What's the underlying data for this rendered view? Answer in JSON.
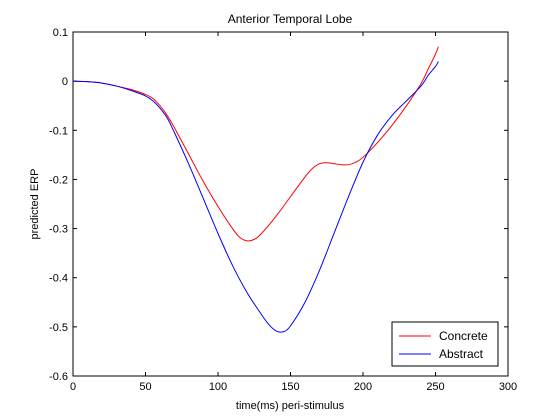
{
  "chart_data": {
    "type": "line",
    "title": "Anterior Temporal Lobe",
    "xlabel": "time(ms) peri-stimulus",
    "ylabel": "predicted ERP",
    "xlim": [
      0,
      300
    ],
    "ylim": [
      -0.6,
      0.1
    ],
    "xticks": [
      0,
      50,
      100,
      150,
      200,
      250,
      300
    ],
    "yticks": [
      0.1,
      0,
      -0.1,
      -0.2,
      -0.3,
      -0.4,
      -0.5,
      -0.6
    ],
    "xtick_labels": [
      "0",
      "50",
      "100",
      "150",
      "200",
      "250",
      "300"
    ],
    "ytick_labels": [
      "0.1",
      "0",
      "-0.1",
      "-0.2",
      "-0.3",
      "-0.4",
      "-0.5",
      "-0.6"
    ],
    "grid": false,
    "legend_position": "bottom-right",
    "series": [
      {
        "name": "Concrete",
        "color": "#ff0000",
        "x": [
          0,
          10,
          20,
          30,
          40,
          50,
          55,
          60,
          65,
          70,
          80,
          90,
          100,
          110,
          115,
          120,
          125,
          130,
          140,
          150,
          160,
          165,
          170,
          175,
          180,
          185,
          190,
          195,
          200,
          210,
          220,
          230,
          240,
          245,
          250,
          252
        ],
        "y": [
          0,
          -0.001,
          -0.004,
          -0.01,
          -0.017,
          -0.027,
          -0.035,
          -0.05,
          -0.07,
          -0.095,
          -0.15,
          -0.205,
          -0.255,
          -0.3,
          -0.318,
          -0.325,
          -0.322,
          -0.31,
          -0.275,
          -0.235,
          -0.195,
          -0.178,
          -0.168,
          -0.166,
          -0.168,
          -0.17,
          -0.17,
          -0.165,
          -0.155,
          -0.125,
          -0.09,
          -0.05,
          -0.005,
          0.025,
          0.055,
          0.07
        ]
      },
      {
        "name": "Abstract",
        "color": "#0000ff",
        "x": [
          0,
          10,
          20,
          30,
          40,
          50,
          55,
          60,
          65,
          70,
          80,
          90,
          100,
          110,
          120,
          130,
          135,
          140,
          145,
          150,
          160,
          170,
          180,
          190,
          200,
          210,
          220,
          230,
          240,
          245,
          250,
          252
        ],
        "y": [
          0,
          -0.001,
          -0.004,
          -0.01,
          -0.019,
          -0.03,
          -0.04,
          -0.055,
          -0.075,
          -0.105,
          -0.17,
          -0.24,
          -0.31,
          -0.375,
          -0.43,
          -0.475,
          -0.495,
          -0.508,
          -0.51,
          -0.498,
          -0.45,
          -0.385,
          -0.31,
          -0.235,
          -0.165,
          -0.11,
          -0.07,
          -0.04,
          -0.01,
          0.012,
          0.03,
          0.04
        ]
      }
    ]
  }
}
